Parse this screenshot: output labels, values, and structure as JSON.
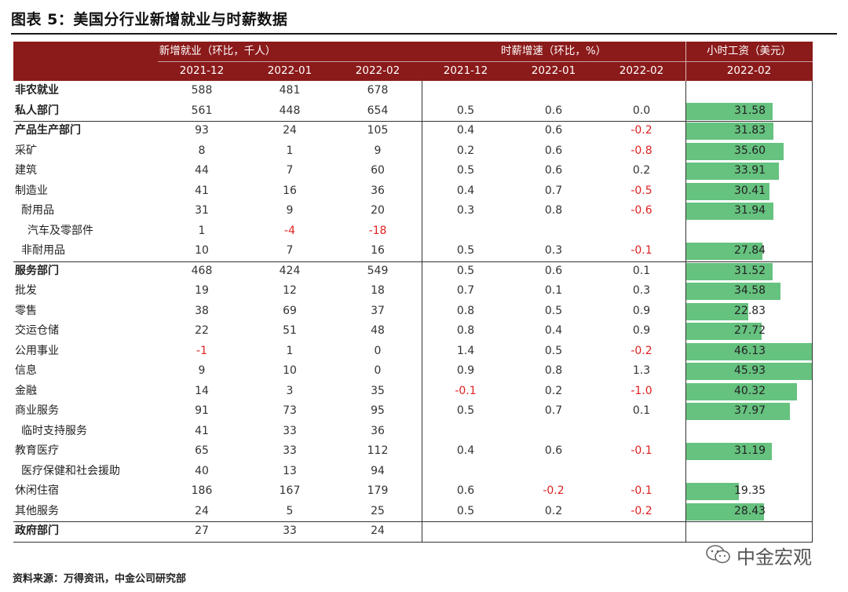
{
  "title": "图表 5：美国分行业新增就业与时薪数据",
  "header": {
    "group1": "新增就业（环比，千人）",
    "group2": "时薪增速（环比，%）",
    "group3": "小时工资（美元）",
    "sub": [
      "2021-12",
      "2022-01",
      "2022-02",
      "2021-12",
      "2022-01",
      "2022-02",
      "2022-02"
    ]
  },
  "rows": [
    {
      "label": "非农就业",
      "bold": true,
      "indent": 0,
      "e": [
        "588",
        "481",
        "678"
      ],
      "w": [
        "",
        "",
        ""
      ],
      "wage": ""
    },
    {
      "label": "私人部门",
      "bold": true,
      "indent": 0,
      "e": [
        "561",
        "448",
        "654"
      ],
      "w": [
        "0.5",
        "0.6",
        "0.0"
      ],
      "wage": "31.58"
    },
    {
      "label": "产品生产部门",
      "bold": true,
      "indent": 0,
      "e": [
        "93",
        "24",
        "105"
      ],
      "w": [
        "0.4",
        "0.6",
        "-0.2"
      ],
      "wage": "31.83"
    },
    {
      "label": "采矿",
      "bold": false,
      "indent": 0,
      "e": [
        "8",
        "1",
        "9"
      ],
      "w": [
        "0.2",
        "0.6",
        "-0.8"
      ],
      "wage": "35.60"
    },
    {
      "label": "建筑",
      "bold": false,
      "indent": 0,
      "e": [
        "44",
        "7",
        "60"
      ],
      "w": [
        "0.5",
        "0.6",
        "0.2"
      ],
      "wage": "33.91"
    },
    {
      "label": "制造业",
      "bold": false,
      "indent": 0,
      "e": [
        "41",
        "16",
        "36"
      ],
      "w": [
        "0.4",
        "0.7",
        "-0.5"
      ],
      "wage": "30.41"
    },
    {
      "label": "耐用品",
      "bold": false,
      "indent": 1,
      "e": [
        "31",
        "9",
        "20"
      ],
      "w": [
        "0.3",
        "0.8",
        "-0.6"
      ],
      "wage": "31.94"
    },
    {
      "label": "汽车及零部件",
      "bold": false,
      "indent": 2,
      "e": [
        "1",
        "-4",
        "-18"
      ],
      "w": [
        "",
        "",
        ""
      ],
      "wage": ""
    },
    {
      "label": "非耐用品",
      "bold": false,
      "indent": 1,
      "e": [
        "10",
        "7",
        "16"
      ],
      "w": [
        "0.5",
        "0.3",
        "-0.1"
      ],
      "wage": "27.84"
    },
    {
      "label": "服务部门",
      "bold": true,
      "indent": 0,
      "e": [
        "468",
        "424",
        "549"
      ],
      "w": [
        "0.5",
        "0.6",
        "0.1"
      ],
      "wage": "31.52"
    },
    {
      "label": "批发",
      "bold": false,
      "indent": 0,
      "e": [
        "19",
        "12",
        "18"
      ],
      "w": [
        "0.7",
        "0.1",
        "0.3"
      ],
      "wage": "34.58"
    },
    {
      "label": "零售",
      "bold": false,
      "indent": 0,
      "e": [
        "38",
        "69",
        "37"
      ],
      "w": [
        "0.8",
        "0.5",
        "0.9"
      ],
      "wage": "22.83"
    },
    {
      "label": "交运仓储",
      "bold": false,
      "indent": 0,
      "e": [
        "22",
        "51",
        "48"
      ],
      "w": [
        "0.8",
        "0.4",
        "0.9"
      ],
      "wage": "27.72"
    },
    {
      "label": "公用事业",
      "bold": false,
      "indent": 0,
      "e": [
        "-1",
        "1",
        "0"
      ],
      "w": [
        "1.4",
        "0.5",
        "-0.2"
      ],
      "wage": "46.13"
    },
    {
      "label": "信息",
      "bold": false,
      "indent": 0,
      "e": [
        "9",
        "10",
        "0"
      ],
      "w": [
        "0.9",
        "0.8",
        "1.3"
      ],
      "wage": "45.93"
    },
    {
      "label": "金融",
      "bold": false,
      "indent": 0,
      "e": [
        "14",
        "3",
        "35"
      ],
      "w": [
        "-0.1",
        "0.2",
        "-1.0"
      ],
      "wage": "40.32"
    },
    {
      "label": "商业服务",
      "bold": false,
      "indent": 0,
      "e": [
        "91",
        "73",
        "95"
      ],
      "w": [
        "0.5",
        "0.7",
        "0.1"
      ],
      "wage": "37.97"
    },
    {
      "label": "临时支持服务",
      "bold": false,
      "indent": 1,
      "e": [
        "41",
        "33",
        "36"
      ],
      "w": [
        "",
        "",
        ""
      ],
      "wage": ""
    },
    {
      "label": "教育医疗",
      "bold": false,
      "indent": 0,
      "e": [
        "65",
        "33",
        "112"
      ],
      "w": [
        "0.4",
        "0.6",
        "-0.1"
      ],
      "wage": "31.19"
    },
    {
      "label": "医疗保健和社会援助",
      "bold": false,
      "indent": 1,
      "e": [
        "40",
        "13",
        "94"
      ],
      "w": [
        "",
        "",
        ""
      ],
      "wage": ""
    },
    {
      "label": "休闲住宿",
      "bold": false,
      "indent": 0,
      "e": [
        "186",
        "167",
        "179"
      ],
      "w": [
        "0.6",
        "-0.2",
        "-0.1"
      ],
      "wage": "19.35"
    },
    {
      "label": "其他服务",
      "bold": false,
      "indent": 0,
      "e": [
        "24",
        "5",
        "25"
      ],
      "w": [
        "0.5",
        "0.2",
        "-0.2"
      ],
      "wage": "28.43"
    },
    {
      "label": "政府部门",
      "bold": true,
      "indent": 0,
      "e": [
        "27",
        "33",
        "24"
      ],
      "w": [
        "",
        "",
        ""
      ],
      "wage": ""
    }
  ],
  "colors": {
    "header_bg": "#8b1a1a",
    "bar": "#66c27f",
    "negative": "#e02020"
  },
  "source": "资料来源：万得资讯，中金公司研究部",
  "watermark": "中金宏观"
}
